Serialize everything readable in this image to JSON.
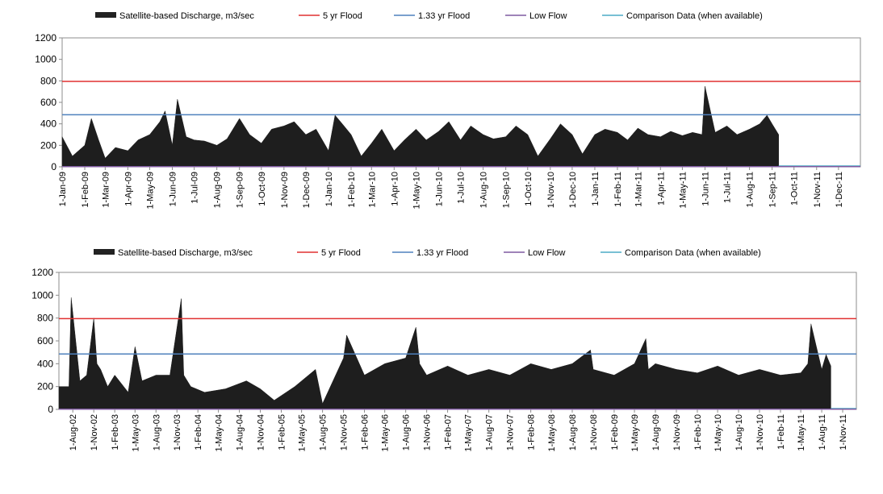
{
  "chart_data": [
    {
      "type": "area",
      "legend": {
        "placement": "top",
        "entries": [
          {
            "label": "Satellite-based Discharge, m3/sec",
            "kind": "area",
            "color": "#222222"
          },
          {
            "label": "5 yr Flood",
            "kind": "line",
            "color": "#e03030"
          },
          {
            "label": "1.33 yr Flood",
            "kind": "line",
            "color": "#4f81bd"
          },
          {
            "label": "Low Flow",
            "kind": "line",
            "color": "#7f5aa0"
          },
          {
            "label": "Comparison Data (when available)",
            "kind": "line",
            "color": "#4bacc6"
          }
        ]
      },
      "ylim": [
        0,
        1200
      ],
      "yticks": [
        "0",
        "200",
        "400",
        "600",
        "800",
        "1000",
        "1200"
      ],
      "xlim": [
        "2009-01-01",
        "2011-12-31"
      ],
      "xticks": [
        {
          "date": "2009-01-01",
          "label": "1-Jan-09"
        },
        {
          "date": "2009-02-01",
          "label": "1-Feb-09"
        },
        {
          "date": "2009-03-01",
          "label": "1-Mar-09"
        },
        {
          "date": "2009-04-01",
          "label": "1-Apr-09"
        },
        {
          "date": "2009-05-01",
          "label": "1-May-09"
        },
        {
          "date": "2009-06-01",
          "label": "1-Jun-09"
        },
        {
          "date": "2009-07-01",
          "label": "1-Jul-09"
        },
        {
          "date": "2009-08-01",
          "label": "1-Aug-09"
        },
        {
          "date": "2009-09-01",
          "label": "1-Sep-09"
        },
        {
          "date": "2009-10-01",
          "label": "1-Oct-09"
        },
        {
          "date": "2009-11-01",
          "label": "1-Nov-09"
        },
        {
          "date": "2009-12-01",
          "label": "1-Dec-09"
        },
        {
          "date": "2010-01-01",
          "label": "1-Jan-10"
        },
        {
          "date": "2010-02-01",
          "label": "1-Feb-10"
        },
        {
          "date": "2010-03-01",
          "label": "1-Mar-10"
        },
        {
          "date": "2010-04-01",
          "label": "1-Apr-10"
        },
        {
          "date": "2010-05-01",
          "label": "1-May-10"
        },
        {
          "date": "2010-06-01",
          "label": "1-Jun-10"
        },
        {
          "date": "2010-07-01",
          "label": "1-Jul-10"
        },
        {
          "date": "2010-08-01",
          "label": "1-Aug-10"
        },
        {
          "date": "2010-09-01",
          "label": "1-Sep-10"
        },
        {
          "date": "2010-10-01",
          "label": "1-Oct-10"
        },
        {
          "date": "2010-11-01",
          "label": "1-Nov-10"
        },
        {
          "date": "2010-12-01",
          "label": "1-Dec-10"
        },
        {
          "date": "2011-01-01",
          "label": "1-Jan-11"
        },
        {
          "date": "2011-02-01",
          "label": "1-Feb-11"
        },
        {
          "date": "2011-03-01",
          "label": "1-Mar-11"
        },
        {
          "date": "2011-04-01",
          "label": "1-Apr-11"
        },
        {
          "date": "2011-05-01",
          "label": "1-May-11"
        },
        {
          "date": "2011-06-01",
          "label": "1-Jun-11"
        },
        {
          "date": "2011-07-01",
          "label": "1-Jul-11"
        },
        {
          "date": "2011-08-01",
          "label": "1-Aug-11"
        },
        {
          "date": "2011-09-01",
          "label": "1-Sep-11"
        },
        {
          "date": "2011-10-01",
          "label": "1-Oct-11"
        },
        {
          "date": "2011-11-01",
          "label": "1-Nov-11"
        },
        {
          "date": "2011-12-01",
          "label": "1-Dec-11"
        }
      ],
      "thresholds": [
        {
          "label": "5 yr Flood",
          "value": 795,
          "color": "#e03030"
        },
        {
          "label": "1.33 yr Flood",
          "value": 485,
          "color": "#4f81bd"
        },
        {
          "label": "Low Flow",
          "value": 2,
          "color": "#7f5aa0"
        }
      ],
      "comparison_series": {
        "label": "Comparison Data (when available)",
        "from": "2011-09-10",
        "to": "2011-12-31",
        "value": 0
      },
      "series": [
        {
          "name": "Satellite-based Discharge, m3/sec",
          "x": [
            "2009-01-01",
            "2009-01-15",
            "2009-02-01",
            "2009-02-10",
            "2009-02-20",
            "2009-03-01",
            "2009-03-15",
            "2009-04-01",
            "2009-04-15",
            "2009-05-01",
            "2009-05-15",
            "2009-05-22",
            "2009-06-01",
            "2009-06-08",
            "2009-06-20",
            "2009-07-01",
            "2009-07-15",
            "2009-08-01",
            "2009-08-15",
            "2009-09-01",
            "2009-09-15",
            "2009-10-01",
            "2009-10-15",
            "2009-11-01",
            "2009-11-15",
            "2009-12-01",
            "2009-12-15",
            "2010-01-01",
            "2010-01-10",
            "2010-01-20",
            "2010-02-01",
            "2010-02-15",
            "2010-03-01",
            "2010-03-15",
            "2010-04-01",
            "2010-04-15",
            "2010-05-01",
            "2010-05-15",
            "2010-06-01",
            "2010-06-15",
            "2010-07-01",
            "2010-07-15",
            "2010-08-01",
            "2010-08-15",
            "2010-09-01",
            "2010-09-15",
            "2010-10-01",
            "2010-10-15",
            "2010-11-01",
            "2010-11-15",
            "2010-12-01",
            "2010-12-15",
            "2011-01-01",
            "2011-01-15",
            "2011-02-01",
            "2011-02-15",
            "2011-03-01",
            "2011-03-15",
            "2011-04-01",
            "2011-04-15",
            "2011-05-01",
            "2011-05-15",
            "2011-05-28",
            "2011-06-01",
            "2011-06-15",
            "2011-07-01",
            "2011-07-15",
            "2011-08-01",
            "2011-08-15",
            "2011-08-25",
            "2011-09-01",
            "2011-09-10"
          ],
          "values": [
            280,
            100,
            200,
            450,
            250,
            80,
            180,
            150,
            250,
            300,
            420,
            520,
            200,
            630,
            280,
            250,
            240,
            200,
            260,
            450,
            300,
            220,
            350,
            380,
            420,
            300,
            350,
            150,
            480,
            400,
            300,
            100,
            220,
            350,
            150,
            250,
            350,
            250,
            330,
            420,
            250,
            380,
            300,
            260,
            280,
            380,
            300,
            100,
            260,
            400,
            300,
            120,
            300,
            350,
            320,
            250,
            360,
            300,
            280,
            330,
            290,
            320,
            300,
            750,
            320,
            380,
            300,
            350,
            400,
            480,
            400,
            300
          ]
        }
      ]
    },
    {
      "type": "area",
      "legend": {
        "placement": "top",
        "entries": [
          {
            "label": "Satellite-based Discharge, m3/sec",
            "kind": "area",
            "color": "#222222"
          },
          {
            "label": "5 yr Flood",
            "kind": "line",
            "color": "#e03030"
          },
          {
            "label": "1.33 yr Flood",
            "kind": "line",
            "color": "#4f81bd"
          },
          {
            "label": "Low Flow",
            "kind": "line",
            "color": "#7f5aa0"
          },
          {
            "label": "Comparison Data (when available)",
            "kind": "line",
            "color": "#4bacc6"
          }
        ]
      },
      "ylim": [
        0,
        1200
      ],
      "yticks": [
        "0",
        "200",
        "400",
        "600",
        "800",
        "1000",
        "1200"
      ],
      "xlim": [
        "2002-06-01",
        "2011-12-31"
      ],
      "xticks": [
        {
          "date": "2002-08-01",
          "label": "1-Aug-02"
        },
        {
          "date": "2002-11-01",
          "label": "1-Nov-02"
        },
        {
          "date": "2003-02-01",
          "label": "1-Feb-03"
        },
        {
          "date": "2003-05-01",
          "label": "1-May-03"
        },
        {
          "date": "2003-08-01",
          "label": "1-Aug-03"
        },
        {
          "date": "2003-11-01",
          "label": "1-Nov-03"
        },
        {
          "date": "2004-02-01",
          "label": "1-Feb-04"
        },
        {
          "date": "2004-05-01",
          "label": "1-May-04"
        },
        {
          "date": "2004-08-01",
          "label": "1-Aug-04"
        },
        {
          "date": "2004-11-01",
          "label": "1-Nov-04"
        },
        {
          "date": "2005-02-01",
          "label": "1-Feb-05"
        },
        {
          "date": "2005-05-01",
          "label": "1-May-05"
        },
        {
          "date": "2005-08-01",
          "label": "1-Aug-05"
        },
        {
          "date": "2005-11-01",
          "label": "1-Nov-05"
        },
        {
          "date": "2006-02-01",
          "label": "1-Feb-06"
        },
        {
          "date": "2006-05-01",
          "label": "1-May-06"
        },
        {
          "date": "2006-08-01",
          "label": "1-Aug-06"
        },
        {
          "date": "2006-11-01",
          "label": "1-Nov-06"
        },
        {
          "date": "2007-02-01",
          "label": "1-Feb-07"
        },
        {
          "date": "2007-05-01",
          "label": "1-May-07"
        },
        {
          "date": "2007-08-01",
          "label": "1-Aug-07"
        },
        {
          "date": "2007-11-01",
          "label": "1-Nov-07"
        },
        {
          "date": "2008-02-01",
          "label": "1-Feb-08"
        },
        {
          "date": "2008-05-01",
          "label": "1-May-08"
        },
        {
          "date": "2008-08-01",
          "label": "1-Aug-08"
        },
        {
          "date": "2008-11-01",
          "label": "1-Nov-08"
        },
        {
          "date": "2009-02-01",
          "label": "1-Feb-09"
        },
        {
          "date": "2009-05-01",
          "label": "1-May-09"
        },
        {
          "date": "2009-08-01",
          "label": "1-Aug-09"
        },
        {
          "date": "2009-11-01",
          "label": "1-Nov-09"
        },
        {
          "date": "2010-02-01",
          "label": "1-Feb-10"
        },
        {
          "date": "2010-05-01",
          "label": "1-May-10"
        },
        {
          "date": "2010-08-01",
          "label": "1-Aug-10"
        },
        {
          "date": "2010-11-01",
          "label": "1-Nov-10"
        },
        {
          "date": "2011-02-01",
          "label": "1-Feb-11"
        },
        {
          "date": "2011-05-01",
          "label": "1-May-11"
        },
        {
          "date": "2011-08-01",
          "label": "1-Aug-11"
        },
        {
          "date": "2011-11-01",
          "label": "1-Nov-11"
        }
      ],
      "thresholds": [
        {
          "label": "5 yr Flood",
          "value": 795,
          "color": "#e03030"
        },
        {
          "label": "1.33 yr Flood",
          "value": 485,
          "color": "#4f81bd"
        },
        {
          "label": "Low Flow",
          "value": 2,
          "color": "#7f5aa0"
        }
      ],
      "comparison_series": {
        "label": "Comparison Data (when available)",
        "from": "2011-09-10",
        "to": "2011-12-31",
        "value": 0
      },
      "series": [
        {
          "name": "Satellite-based Discharge, m3/sec",
          "x": [
            "2002-06-01",
            "2002-07-15",
            "2002-07-25",
            "2002-09-01",
            "2002-10-01",
            "2002-11-01",
            "2002-11-15",
            "2002-12-01",
            "2003-01-01",
            "2003-02-01",
            "2003-04-01",
            "2003-05-01",
            "2003-06-01",
            "2003-08-01",
            "2003-10-01",
            "2003-11-20",
            "2003-12-01",
            "2004-01-01",
            "2004-03-01",
            "2004-06-01",
            "2004-09-01",
            "2004-11-01",
            "2005-01-01",
            "2005-04-01",
            "2005-07-01",
            "2005-08-01",
            "2005-11-01",
            "2005-11-15",
            "2006-02-01",
            "2006-05-01",
            "2006-08-01",
            "2006-09-15",
            "2006-10-01",
            "2006-11-01",
            "2007-02-01",
            "2007-05-01",
            "2007-08-01",
            "2007-11-01",
            "2008-02-01",
            "2008-05-01",
            "2008-08-01",
            "2008-10-20",
            "2008-11-01",
            "2009-02-01",
            "2009-05-01",
            "2009-06-20",
            "2009-07-01",
            "2009-08-01",
            "2009-11-01",
            "2010-02-01",
            "2010-05-01",
            "2010-08-01",
            "2010-11-01",
            "2011-02-01",
            "2011-05-01",
            "2011-06-01",
            "2011-06-15",
            "2011-08-01",
            "2011-08-20",
            "2011-09-10"
          ],
          "values": [
            200,
            200,
            980,
            250,
            300,
            800,
            400,
            350,
            200,
            300,
            150,
            550,
            250,
            300,
            300,
            970,
            300,
            200,
            150,
            180,
            250,
            180,
            80,
            200,
            350,
            50,
            450,
            650,
            300,
            400,
            450,
            720,
            400,
            300,
            380,
            300,
            350,
            300,
            400,
            350,
            400,
            520,
            350,
            300,
            400,
            620,
            350,
            400,
            350,
            320,
            380,
            300,
            350,
            300,
            320,
            400,
            750,
            350,
            480,
            380
          ]
        }
      ]
    }
  ]
}
